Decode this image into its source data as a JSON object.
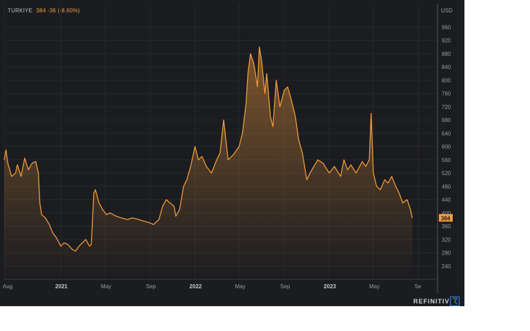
{
  "legend": {
    "name": "TURKIYE",
    "value": "384",
    "change": "-36 (-8.60%)"
  },
  "axis_unit": "USD",
  "last_value_label": "384",
  "brand": "REFINITIV",
  "colors": {
    "background": "#1b1c20",
    "line": "#f39c3a",
    "grid": "#26272c"
  },
  "chart_data": {
    "type": "area",
    "title": "",
    "y_unit": "USD",
    "ylim": [
      200,
      1000
    ],
    "y_ticks": [
      240,
      280,
      320,
      360,
      400,
      440,
      480,
      520,
      560,
      600,
      640,
      680,
      720,
      760,
      800,
      840,
      880,
      920,
      960
    ],
    "xlim": [
      "2020-07-31",
      "2023-09-15"
    ],
    "x_ticks": [
      {
        "date": "2020-08-01",
        "label": "Aug",
        "year": false
      },
      {
        "date": "2021-01-01",
        "label": "2021",
        "year": true
      },
      {
        "date": "2021-05-01",
        "label": "May",
        "year": false
      },
      {
        "date": "2021-09-01",
        "label": "Sep",
        "year": false
      },
      {
        "date": "2022-01-01",
        "label": "2022",
        "year": true
      },
      {
        "date": "2022-05-01",
        "label": "May",
        "year": false
      },
      {
        "date": "2022-09-01",
        "label": "Sep",
        "year": false
      },
      {
        "date": "2023-01-01",
        "label": "2023",
        "year": true
      },
      {
        "date": "2023-05-01",
        "label": "May",
        "year": false
      },
      {
        "date": "2023-09-01",
        "label": "Se",
        "year": false
      }
    ],
    "grid": true,
    "series": [
      {
        "x": [
          "2020-07-31",
          "2020-08-05",
          "2020-08-10",
          "2020-08-20",
          "2020-08-31",
          "2020-09-05",
          "2020-09-15",
          "2020-09-25",
          "2020-10-05",
          "2020-10-15",
          "2020-10-25",
          "2020-11-01",
          "2020-11-05",
          "2020-11-10",
          "2020-11-20",
          "2020-12-01",
          "2020-12-10",
          "2020-12-20",
          "2021-01-01",
          "2021-01-10",
          "2021-01-20",
          "2021-02-01",
          "2021-02-10",
          "2021-02-20",
          "2021-03-01",
          "2021-03-10",
          "2021-03-20",
          "2021-03-25",
          "2021-04-01",
          "2021-04-05",
          "2021-04-15",
          "2021-04-25",
          "2021-05-05",
          "2021-05-15",
          "2021-06-01",
          "2021-06-15",
          "2021-07-01",
          "2021-07-15",
          "2021-08-01",
          "2021-08-15",
          "2021-09-01",
          "2021-09-10",
          "2021-09-25",
          "2021-10-05",
          "2021-10-15",
          "2021-10-25",
          "2021-11-05",
          "2021-11-10",
          "2021-11-20",
          "2021-12-01",
          "2021-12-10",
          "2021-12-20",
          "2022-01-01",
          "2022-01-10",
          "2022-01-20",
          "2022-02-01",
          "2022-02-15",
          "2022-03-01",
          "2022-03-10",
          "2022-03-20",
          "2022-04-01",
          "2022-04-15",
          "2022-05-01",
          "2022-05-10",
          "2022-05-20",
          "2022-05-25",
          "2022-06-01",
          "2022-06-10",
          "2022-06-20",
          "2022-06-25",
          "2022-07-01",
          "2022-07-10",
          "2022-07-15",
          "2022-07-25",
          "2022-08-01",
          "2022-08-10",
          "2022-08-20",
          "2022-09-01",
          "2022-09-10",
          "2022-09-20",
          "2022-10-01",
          "2022-10-10",
          "2022-10-20",
          "2022-11-01",
          "2022-11-10",
          "2022-11-20",
          "2022-12-01",
          "2022-12-15",
          "2023-01-01",
          "2023-01-15",
          "2023-02-01",
          "2023-02-10",
          "2023-02-20",
          "2023-03-01",
          "2023-03-15",
          "2023-04-01",
          "2023-04-10",
          "2023-04-20",
          "2023-04-25",
          "2023-05-01",
          "2023-05-10",
          "2023-05-20",
          "2023-06-01",
          "2023-06-10",
          "2023-06-20",
          "2023-07-01",
          "2023-07-10",
          "2023-07-20",
          "2023-08-01",
          "2023-08-10",
          "2023-08-15"
        ],
        "values": [
          560,
          590,
          550,
          510,
          520,
          545,
          510,
          565,
          530,
          550,
          555,
          520,
          430,
          395,
          385,
          365,
          340,
          325,
          300,
          310,
          305,
          290,
          285,
          300,
          310,
          320,
          300,
          305,
          460,
          470,
          430,
          410,
          395,
          400,
          390,
          385,
          380,
          385,
          380,
          375,
          370,
          365,
          380,
          420,
          440,
          430,
          420,
          390,
          410,
          480,
          500,
          540,
          600,
          560,
          570,
          540,
          520,
          560,
          580,
          680,
          560,
          575,
          600,
          640,
          730,
          820,
          880,
          850,
          780,
          900,
          860,
          760,
          820,
          690,
          660,
          800,
          720,
          770,
          780,
          740,
          690,
          620,
          580,
          500,
          520,
          540,
          560,
          550,
          520,
          540,
          510,
          560,
          530,
          545,
          520,
          555,
          540,
          560,
          700,
          520,
          480,
          470,
          500,
          490,
          510,
          480,
          460,
          430,
          440,
          410,
          384
        ]
      }
    ]
  }
}
